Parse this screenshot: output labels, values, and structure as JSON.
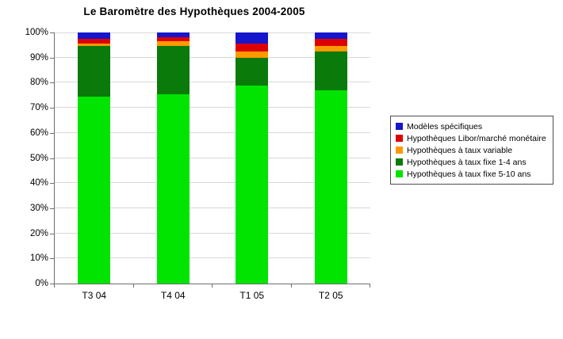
{
  "chart_data": {
    "type": "bar",
    "variant": "stacked-percent-column",
    "title": "Le Baromètre des Hypothèques 2004-2005",
    "categories": [
      "T3 04",
      "T4 04",
      "T1 05",
      "T2 05"
    ],
    "series": [
      {
        "name": "Hypothèques à taux fixe 5-10 ans",
        "color": "#00e400",
        "values": [
          74.5,
          75.5,
          79,
          77
        ]
      },
      {
        "name": "Hypothèques à taux fixe 1-4 ans",
        "color": "#0a7a0a",
        "values": [
          20,
          19,
          11,
          15.5
        ]
      },
      {
        "name": "Hypothèques à taux variable",
        "color": "#ff9900",
        "values": [
          1,
          2,
          2.5,
          2
        ]
      },
      {
        "name": "Hypothèques Libor/marché monétaire",
        "color": "#dd0000",
        "values": [
          2,
          1.5,
          3,
          3
        ]
      },
      {
        "name": "Modèles spécifiques",
        "color": "#1616cc",
        "values": [
          2.5,
          2,
          4.5,
          2.5
        ]
      }
    ],
    "stack_order": "first-series-at-bottom",
    "legend_order": "top-series-first",
    "xlabel": "",
    "ylabel": "",
    "ylim": [
      0,
      100
    ],
    "yticks": [
      "0%",
      "10%",
      "20%",
      "30%",
      "40%",
      "50%",
      "60%",
      "70%",
      "80%",
      "90%",
      "100%"
    ],
    "grid": true,
    "gridline_color": "#d8d8d8",
    "axis_color": "#6e6e6e",
    "legend_position": "right",
    "plot_background": "#ffffff"
  }
}
